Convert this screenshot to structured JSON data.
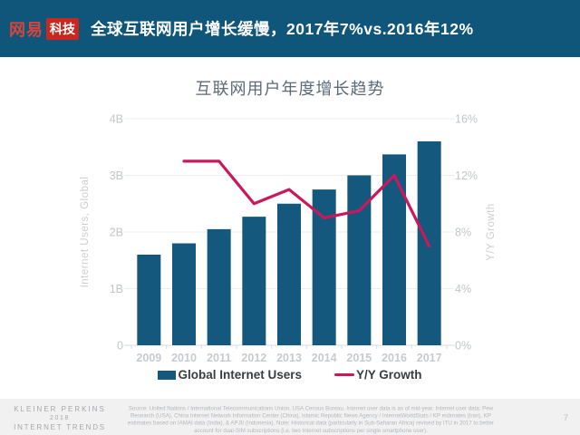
{
  "header": {
    "logo": {
      "wordmark": "网易",
      "badge": "科技"
    },
    "title": "全球互联网用户增长缓慢，2017年7%vs.2016年12%"
  },
  "chart": {
    "title": "互联网用户年度增长趋势",
    "left_axis": {
      "title": "Internet Users, Global",
      "ticks": [
        "0",
        "1B",
        "2B",
        "3B",
        "4B"
      ]
    },
    "right_axis": {
      "title": "Y/Y Growth",
      "ticks": [
        "0%",
        "4%",
        "8%",
        "12%",
        "16%"
      ]
    },
    "legend": [
      {
        "label": "Global Internet Users",
        "color": "#14587d",
        "type": "bar"
      },
      {
        "label": "Y/Y Growth",
        "color": "#c8195c",
        "type": "line"
      }
    ]
  },
  "chart_data": {
    "type": "bar",
    "title": "互联网用户年度增长趋势",
    "categories": [
      "2009",
      "2010",
      "2011",
      "2012",
      "2013",
      "2014",
      "2015",
      "2016",
      "2017"
    ],
    "series": [
      {
        "name": "Global Internet Users",
        "type": "bar",
        "axis": "left",
        "unit": "billions",
        "color": "#14587d",
        "values": [
          1.6,
          1.8,
          2.05,
          2.27,
          2.5,
          2.75,
          3.0,
          3.37,
          3.6
        ]
      },
      {
        "name": "Y/Y Growth",
        "type": "line",
        "axis": "right",
        "unit": "%",
        "color": "#c8195c",
        "values": [
          null,
          13,
          13,
          10,
          11,
          9,
          9.5,
          12,
          7
        ]
      }
    ],
    "xlabel": "",
    "ylabel_left": "Internet Users, Global",
    "ylabel_right": "Y/Y Growth",
    "ylim_left": [
      0,
      4
    ],
    "ylim_right": [
      0,
      16
    ],
    "grid": true,
    "legend_position": "bottom"
  },
  "footer": {
    "brand_lines": [
      "KLEINER PERKINS",
      "2018",
      "INTERNET TRENDS"
    ],
    "source_text": "Source: United Nations / International Telecommunications Union, USA Census Bureau. Internet user data is as of mid-year. Internet user data: Pew Research (USA), China Internet Network Information Center (China), Islamic Republic News Agency / InternetWorldStats / KP estimates (Iran), KP estimates based on IAMAI data (India), & APJII (Indonesia). Note: Historical data (particularly in Sub-Saharan Africa) revised by ITU in 2017 to better account for dual-SIM subscriptions (i.e. two Internet subscriptions per single smartphone user).",
    "page_number": "7"
  }
}
